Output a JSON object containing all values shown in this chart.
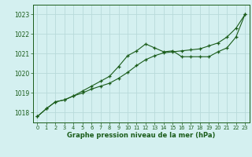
{
  "title": "Graphe pression niveau de la mer (hPa)",
  "background_color": "#d4f0f0",
  "grid_color": "#b8dada",
  "line_color": "#1a5c1a",
  "xlim": [
    -0.5,
    23.5
  ],
  "ylim": [
    1017.5,
    1023.5
  ],
  "yticks": [
    1018,
    1019,
    1020,
    1021,
    1022,
    1023
  ],
  "xticks": [
    0,
    1,
    2,
    3,
    4,
    5,
    6,
    7,
    8,
    9,
    10,
    11,
    12,
    13,
    14,
    15,
    16,
    17,
    18,
    19,
    20,
    21,
    22,
    23
  ],
  "series1_wavy": {
    "x": [
      0,
      1,
      2,
      3,
      4,
      5,
      6,
      7,
      8,
      9,
      10,
      11,
      12,
      13,
      14,
      15,
      16,
      17,
      18,
      19,
      20,
      21,
      22,
      23
    ],
    "y": [
      1017.8,
      1018.2,
      1018.55,
      1018.65,
      1018.85,
      1019.1,
      1019.35,
      1019.6,
      1019.85,
      1020.35,
      1020.9,
      1021.15,
      1021.5,
      1021.3,
      1021.1,
      1021.15,
      1020.85,
      1020.85,
      1020.85,
      1020.85,
      1021.1,
      1021.3,
      1021.85,
      1023.0
    ]
  },
  "series2_straight": {
    "x": [
      0,
      1,
      2,
      3,
      4,
      5,
      6,
      7,
      8,
      9,
      10,
      11,
      12,
      13,
      14,
      15,
      16,
      17,
      18,
      19,
      20,
      21,
      22,
      23
    ],
    "y": [
      1017.8,
      1018.2,
      1018.55,
      1018.65,
      1018.85,
      1019.0,
      1019.2,
      1019.35,
      1019.5,
      1019.75,
      1020.05,
      1020.4,
      1020.7,
      1020.9,
      1021.05,
      1021.1,
      1021.15,
      1021.2,
      1021.25,
      1021.4,
      1021.55,
      1021.85,
      1022.3,
      1023.0
    ]
  }
}
